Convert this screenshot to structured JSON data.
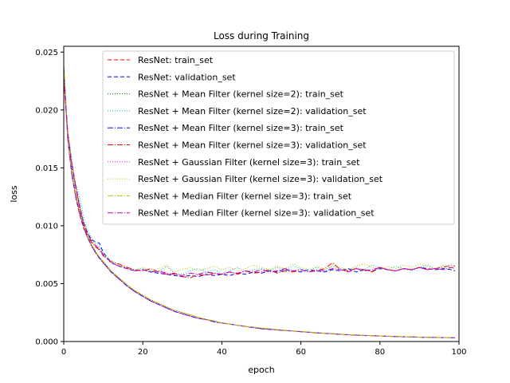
{
  "chart_data": {
    "type": "line",
    "title": "Loss during Training",
    "xlabel": "epoch",
    "ylabel": "loss",
    "xlim": [
      0,
      100
    ],
    "ylim": [
      0,
      0.0255
    ],
    "xticks": [
      0,
      20,
      40,
      60,
      80,
      100
    ],
    "xtick_labels": [
      "0",
      "20",
      "40",
      "60",
      "80",
      "100"
    ],
    "yticks": [
      0,
      0.005,
      0.01,
      0.015,
      0.02,
      0.025
    ],
    "ytick_labels": [
      "0.000",
      "0.005",
      "0.010",
      "0.015",
      "0.020",
      "0.025"
    ],
    "grid": false,
    "legend_position": "top-right",
    "x": [
      0,
      1,
      2,
      3,
      4,
      5,
      6,
      7,
      8,
      9,
      10,
      12,
      14,
      16,
      18,
      20,
      22,
      24,
      26,
      28,
      30,
      32,
      34,
      36,
      38,
      40,
      42,
      44,
      46,
      48,
      50,
      52,
      54,
      56,
      58,
      60,
      62,
      64,
      66,
      68,
      70,
      72,
      74,
      76,
      78,
      80,
      82,
      84,
      86,
      88,
      90,
      92,
      94,
      96,
      98,
      99
    ],
    "series": [
      {
        "name": "ResNet: train_set",
        "color": "#ff0000",
        "dash": "5,3",
        "values": [
          0.0235,
          0.0175,
          0.0145,
          0.0125,
          0.011,
          0.0098,
          0.009,
          0.0083,
          0.0077,
          0.0072,
          0.0068,
          0.006,
          0.0054,
          0.0048,
          0.0043,
          0.0039,
          0.0035,
          0.0032,
          0.0029,
          0.0026,
          0.0024,
          0.0022,
          0.002,
          0.0019,
          0.0017,
          0.0016,
          0.0015,
          0.0014,
          0.0013,
          0.0012,
          0.0011,
          0.00105,
          0.001,
          0.00095,
          0.0009,
          0.00085,
          0.0008,
          0.00075,
          0.0007,
          0.00066,
          0.00062,
          0.00058,
          0.00055,
          0.00052,
          0.0005,
          0.00048,
          0.00045,
          0.00043,
          0.00041,
          0.00039,
          0.00037,
          0.00036,
          0.00035,
          0.00034,
          0.00033,
          0.00032
        ]
      },
      {
        "name": "ResNet: validation_set",
        "color": "#0000ff",
        "dash": "5,3",
        "values": [
          0.0228,
          0.018,
          0.0155,
          0.0135,
          0.0118,
          0.0103,
          0.0094,
          0.0088,
          0.0086,
          0.0085,
          0.0077,
          0.0068,
          0.0065,
          0.0063,
          0.0061,
          0.0062,
          0.006,
          0.0059,
          0.0058,
          0.0057,
          0.0056,
          0.0057,
          0.0056,
          0.0058,
          0.0057,
          0.0058,
          0.0057,
          0.0059,
          0.0058,
          0.006,
          0.0059,
          0.0061,
          0.006,
          0.0062,
          0.0061,
          0.006,
          0.0062,
          0.0061,
          0.006,
          0.0062,
          0.0061,
          0.0063,
          0.006,
          0.0062,
          0.0061,
          0.0063,
          0.0062,
          0.0061,
          0.0063,
          0.0062,
          0.0064,
          0.0063,
          0.0062,
          0.0063,
          0.0062,
          0.0061
        ]
      },
      {
        "name": "ResNet + Mean Filter (kernel size=2): train_set",
        "color": "#008000",
        "dash": "1,2",
        "values": [
          0.0238,
          0.0178,
          0.0147,
          0.0127,
          0.0112,
          0.01,
          0.0091,
          0.0084,
          0.0078,
          0.0073,
          0.0069,
          0.0061,
          0.0055,
          0.0049,
          0.0044,
          0.004,
          0.0036,
          0.0033,
          0.003,
          0.0027,
          0.0025,
          0.0023,
          0.0021,
          0.0019,
          0.0018,
          0.0016,
          0.0015,
          0.0014,
          0.0013,
          0.00125,
          0.00115,
          0.0011,
          0.00103,
          0.00097,
          0.00092,
          0.00087,
          0.00082,
          0.00077,
          0.00072,
          0.00068,
          0.00064,
          0.0006,
          0.00057,
          0.00054,
          0.00051,
          0.00049,
          0.00046,
          0.00044,
          0.00042,
          0.0004,
          0.00038,
          0.00037,
          0.00036,
          0.00035,
          0.00034,
          0.00033
        ]
      },
      {
        "name": "ResNet + Mean Filter (kernel size=2): validation_set",
        "color": "#00bfbf",
        "dash": "1,2",
        "values": [
          0.0232,
          0.0183,
          0.0158,
          0.0137,
          0.0125,
          0.0108,
          0.0096,
          0.009,
          0.0085,
          0.0082,
          0.0076,
          0.007,
          0.0066,
          0.0064,
          0.0062,
          0.0063,
          0.0061,
          0.006,
          0.0065,
          0.0059,
          0.0058,
          0.0061,
          0.0063,
          0.006,
          0.0062,
          0.0059,
          0.0061,
          0.0064,
          0.006,
          0.0062,
          0.0063,
          0.0061,
          0.0064,
          0.0062,
          0.0065,
          0.0063,
          0.0061,
          0.0064,
          0.0062,
          0.0065,
          0.0063,
          0.0061,
          0.0064,
          0.0062,
          0.0066,
          0.0064,
          0.0062,
          0.0065,
          0.0063,
          0.0061,
          0.0064,
          0.0066,
          0.0063,
          0.0065,
          0.0064,
          0.0063
        ]
      },
      {
        "name": "ResNet + Mean Filter (kernel size=3): train_set",
        "color": "#0000ff",
        "dash": "7,2,1,2",
        "values": [
          0.0236,
          0.0176,
          0.0146,
          0.0126,
          0.0111,
          0.0099,
          0.009,
          0.0083,
          0.0077,
          0.0072,
          0.0068,
          0.006,
          0.0054,
          0.0048,
          0.0043,
          0.0039,
          0.0035,
          0.0032,
          0.0029,
          0.0026,
          0.0024,
          0.0022,
          0.002,
          0.0019,
          0.0017,
          0.0016,
          0.0015,
          0.0014,
          0.0013,
          0.0012,
          0.0011,
          0.00105,
          0.001,
          0.00095,
          0.0009,
          0.00085,
          0.0008,
          0.00075,
          0.0007,
          0.00066,
          0.00062,
          0.00058,
          0.00055,
          0.00052,
          0.0005,
          0.00048,
          0.00045,
          0.00043,
          0.00041,
          0.00039,
          0.00037,
          0.00036,
          0.00035,
          0.00034,
          0.00033,
          0.00032
        ]
      },
      {
        "name": "ResNet + Mean Filter (kernel size=3): validation_set",
        "color": "#ff0000",
        "dash": "7,2,1,2",
        "values": [
          0.0227,
          0.0179,
          0.0153,
          0.0133,
          0.0116,
          0.0101,
          0.0092,
          0.0086,
          0.0082,
          0.0079,
          0.0074,
          0.0069,
          0.0067,
          0.0064,
          0.0062,
          0.0061,
          0.0063,
          0.006,
          0.0058,
          0.0059,
          0.0056,
          0.0055,
          0.0058,
          0.0057,
          0.0059,
          0.0058,
          0.006,
          0.0058,
          0.0061,
          0.0059,
          0.006,
          0.0062,
          0.0059,
          0.0061,
          0.006,
          0.0062,
          0.006,
          0.0061,
          0.0063,
          0.0068,
          0.0062,
          0.0061,
          0.0063,
          0.0062,
          0.006,
          0.0064,
          0.0062,
          0.0061,
          0.0063,
          0.0062,
          0.0064,
          0.0062,
          0.0063,
          0.0064,
          0.0066,
          0.0065
        ]
      },
      {
        "name": "ResNet + Gaussian Filter (kernel size=3): train_set",
        "color": "#ff00ff",
        "dash": "1,2",
        "values": [
          0.0237,
          0.0177,
          0.0146,
          0.0126,
          0.0111,
          0.0099,
          0.009,
          0.0083,
          0.0077,
          0.0072,
          0.0068,
          0.006,
          0.0054,
          0.0048,
          0.0043,
          0.0039,
          0.0035,
          0.0032,
          0.0029,
          0.0026,
          0.0024,
          0.0022,
          0.002,
          0.0019,
          0.0017,
          0.0016,
          0.0015,
          0.0014,
          0.0013,
          0.0012,
          0.0011,
          0.00105,
          0.001,
          0.00095,
          0.0009,
          0.00085,
          0.0008,
          0.00075,
          0.0007,
          0.00066,
          0.00062,
          0.00058,
          0.00055,
          0.00052,
          0.0005,
          0.00048,
          0.00045,
          0.00043,
          0.00041,
          0.00039,
          0.00037,
          0.00036,
          0.00035,
          0.00034,
          0.00033,
          0.00032
        ]
      },
      {
        "name": "ResNet + Gaussian Filter (kernel size=3): validation_set",
        "color": "#bfbf00",
        "dash": "1,2",
        "values": [
          0.023,
          0.0182,
          0.0156,
          0.0136,
          0.0119,
          0.0104,
          0.0095,
          0.0089,
          0.0084,
          0.008,
          0.0075,
          0.0069,
          0.0066,
          0.0063,
          0.0062,
          0.0064,
          0.0061,
          0.0063,
          0.0066,
          0.006,
          0.0062,
          0.0064,
          0.0061,
          0.0063,
          0.0065,
          0.0062,
          0.0064,
          0.0061,
          0.0063,
          0.0066,
          0.0064,
          0.0062,
          0.0065,
          0.0063,
          0.0067,
          0.0064,
          0.0062,
          0.0065,
          0.0063,
          0.0066,
          0.0064,
          0.0062,
          0.0065,
          0.0067,
          0.0064,
          0.0062,
          0.0065,
          0.0063,
          0.0066,
          0.0064,
          0.0067,
          0.0065,
          0.0063,
          0.0066,
          0.0064,
          0.0065
        ]
      },
      {
        "name": "ResNet + Median Filter (kernel size=3): train_set",
        "color": "#bfbf00",
        "dash": "7,2,1,2",
        "values": [
          0.0239,
          0.0179,
          0.0148,
          0.0128,
          0.0113,
          0.01,
          0.0091,
          0.0084,
          0.0078,
          0.0073,
          0.0069,
          0.0061,
          0.0055,
          0.0049,
          0.0044,
          0.004,
          0.0036,
          0.0033,
          0.003,
          0.0027,
          0.0025,
          0.0023,
          0.0021,
          0.0019,
          0.0018,
          0.0016,
          0.0015,
          0.0014,
          0.0013,
          0.00125,
          0.00115,
          0.0011,
          0.00103,
          0.00097,
          0.00092,
          0.00087,
          0.00082,
          0.00077,
          0.00072,
          0.00068,
          0.00064,
          0.0006,
          0.00057,
          0.00054,
          0.00051,
          0.00049,
          0.00046,
          0.00044,
          0.00042,
          0.0004,
          0.00038,
          0.00037,
          0.00036,
          0.00035,
          0.00034,
          0.00033
        ]
      },
      {
        "name": "ResNet + Median Filter (kernel size=3): validation_set",
        "color": "#bf00bf",
        "dash": "7,2,1,2",
        "values": [
          0.0229,
          0.0181,
          0.0154,
          0.0134,
          0.0117,
          0.0102,
          0.0093,
          0.0087,
          0.0083,
          0.008,
          0.0075,
          0.0068,
          0.0065,
          0.0063,
          0.0061,
          0.0062,
          0.006,
          0.0061,
          0.0059,
          0.0058,
          0.0057,
          0.0059,
          0.0058,
          0.006,
          0.0059,
          0.0058,
          0.006,
          0.0059,
          0.0061,
          0.006,
          0.0062,
          0.006,
          0.0061,
          0.0063,
          0.0061,
          0.0062,
          0.006,
          0.0062,
          0.0061,
          0.0063,
          0.0062,
          0.006,
          0.0063,
          0.0061,
          0.0062,
          0.0064,
          0.0062,
          0.0061,
          0.0063,
          0.0062,
          0.0064,
          0.0062,
          0.0063,
          0.0062,
          0.0064,
          0.0063
        ]
      }
    ]
  }
}
